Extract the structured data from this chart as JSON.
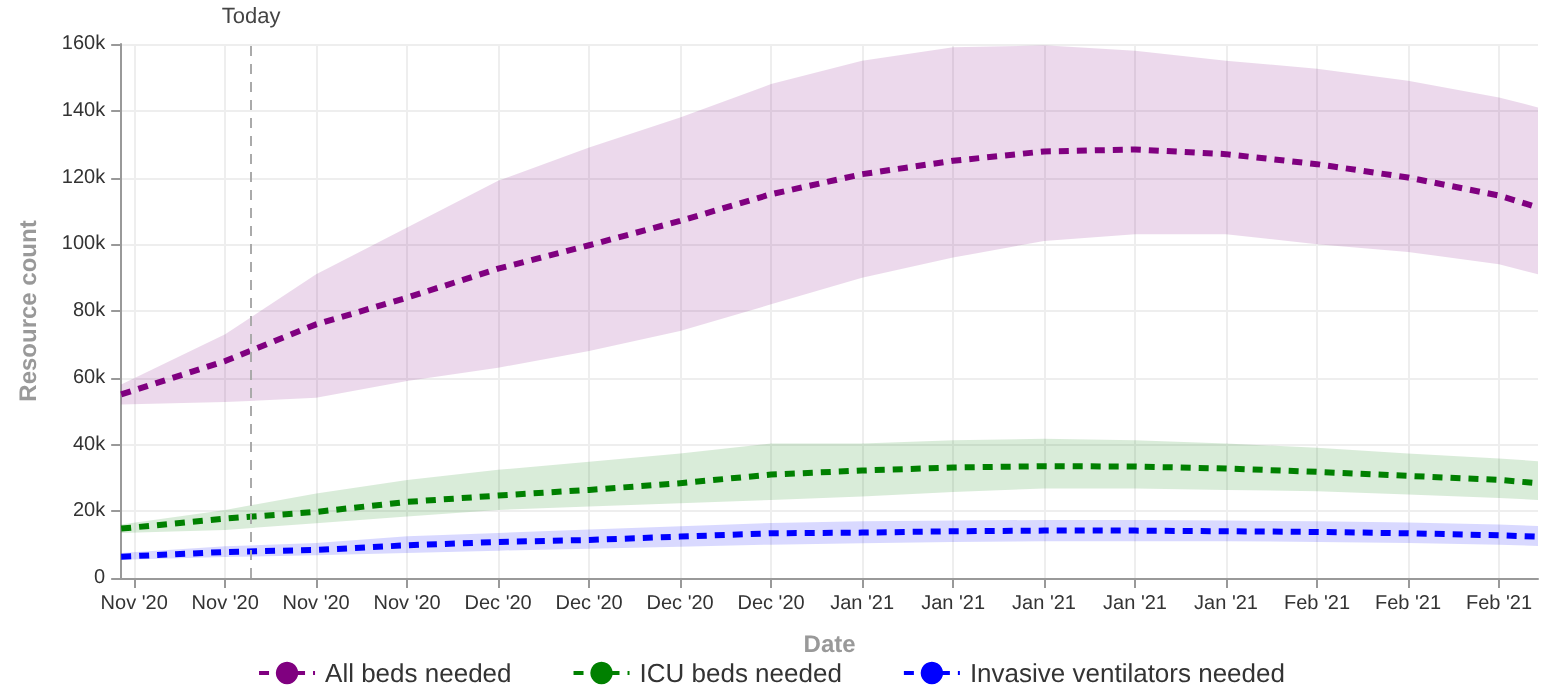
{
  "chart_data": {
    "type": "line",
    "xlabel": "Date",
    "ylabel": "Resource count",
    "x": [
      "2020-11-07",
      "2020-11-15",
      "2020-11-22",
      "2020-11-29",
      "2020-12-06",
      "2020-12-13",
      "2020-12-20",
      "2020-12-27",
      "2021-01-03",
      "2021-01-10",
      "2021-01-17",
      "2021-01-24",
      "2021-01-31",
      "2021-02-07",
      "2021-02-14",
      "2021-02-21",
      "2021-02-24"
    ],
    "series": [
      {
        "name": "All beds needed",
        "color": "#800080",
        "values": [
          55000,
          65000,
          76000,
          84000,
          92700,
          99700,
          107000,
          115000,
          121000,
          125000,
          127800,
          128400,
          127000,
          124000,
          120000,
          114600,
          111000
        ],
        "lower": [
          52000,
          52700,
          54000,
          59000,
          63000,
          68000,
          74000,
          82000,
          90000,
          96000,
          101000,
          103000,
          103000,
          100000,
          97700,
          94000,
          91000
        ],
        "upper": [
          58000,
          73000,
          91000,
          105000,
          119000,
          129000,
          138000,
          148000,
          155000,
          159000,
          159600,
          158000,
          155000,
          152600,
          149000,
          144000,
          141000
        ]
      },
      {
        "name": "ICU beds needed",
        "color": "#008000",
        "values": [
          14800,
          17800,
          19800,
          22800,
          24700,
          26400,
          28400,
          31000,
          32200,
          33100,
          33500,
          33400,
          32800,
          31800,
          30600,
          29400,
          28400
        ],
        "lower": [
          13500,
          14400,
          16400,
          18400,
          20400,
          21400,
          22400,
          23400,
          24400,
          25800,
          26800,
          26800,
          26400,
          26000,
          25000,
          24000,
          23400
        ],
        "upper": [
          16000,
          20400,
          25300,
          29400,
          32400,
          34800,
          37300,
          40300,
          40300,
          41300,
          41700,
          41300,
          40300,
          39000,
          37300,
          35800,
          35000
        ]
      },
      {
        "name": "Invasive ventilators needed",
        "color": "#0000ff",
        "values": [
          6400,
          7800,
          8400,
          9800,
          10800,
          11400,
          12400,
          13400,
          13600,
          14000,
          14200,
          14200,
          14000,
          13800,
          13400,
          12800,
          12400
        ],
        "lower": [
          5500,
          6300,
          6800,
          7500,
          8200,
          8800,
          9400,
          10000,
          10400,
          10800,
          11000,
          11000,
          11000,
          10800,
          10500,
          10000,
          9600
        ],
        "upper": [
          7500,
          9500,
          10500,
          12500,
          13500,
          14500,
          15500,
          16500,
          17000,
          17200,
          17400,
          17400,
          17200,
          17000,
          16600,
          16000,
          15600
        ]
      }
    ],
    "xlim": [
      "2020-11-07",
      "2021-02-24"
    ],
    "xticks": [
      {
        "value": "2020-11-08",
        "label": "Nov '20"
      },
      {
        "value": "2020-11-15",
        "label": "Nov '20"
      },
      {
        "value": "2020-11-22",
        "label": "Nov '20"
      },
      {
        "value": "2020-11-29",
        "label": "Nov '20"
      },
      {
        "value": "2020-12-06",
        "label": "Dec '20"
      },
      {
        "value": "2020-12-13",
        "label": "Dec '20"
      },
      {
        "value": "2020-12-20",
        "label": "Dec '20"
      },
      {
        "value": "2020-12-27",
        "label": "Dec '20"
      },
      {
        "value": "2021-01-03",
        "label": "Jan '21"
      },
      {
        "value": "2021-01-10",
        "label": "Jan '21"
      },
      {
        "value": "2021-01-17",
        "label": "Jan '21"
      },
      {
        "value": "2021-01-24",
        "label": "Jan '21"
      },
      {
        "value": "2021-01-31",
        "label": "Jan '21"
      },
      {
        "value": "2021-02-07",
        "label": "Feb '21"
      },
      {
        "value": "2021-02-14",
        "label": "Feb '21"
      },
      {
        "value": "2021-02-21",
        "label": "Feb '21"
      }
    ],
    "ylim": [
      0,
      160000
    ],
    "yticks": [
      0,
      {
        "value": 20000,
        "label": "20k"
      },
      {
        "value": 40000,
        "label": "40k"
      },
      {
        "value": 60000,
        "label": "60k"
      },
      {
        "value": 80000,
        "label": "80k"
      },
      {
        "value": 100000,
        "label": "100k"
      },
      {
        "value": 120000,
        "label": "120k"
      },
      {
        "value": 140000,
        "label": "140k"
      },
      {
        "value": 160000,
        "label": "160k"
      }
    ],
    "ref_lines": [
      {
        "axis": "x",
        "value": "2020-11-17",
        "label": "Today",
        "color": "#aaaaaa",
        "line_style": "dashed"
      }
    ],
    "grid": true,
    "legend": "bottom",
    "marker": "none",
    "line_style": "dashed"
  }
}
